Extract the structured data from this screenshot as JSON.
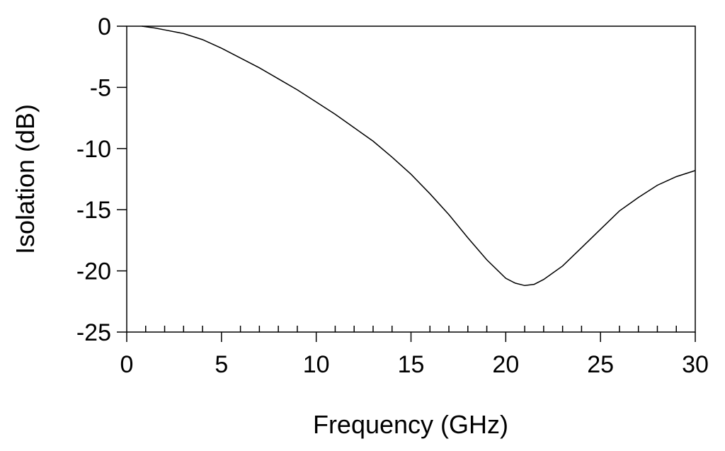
{
  "chart_data": {
    "type": "line",
    "title": "",
    "xlabel": "Frequency (GHz)",
    "ylabel": "Isolation (dB)",
    "xlim": [
      0,
      30
    ],
    "ylim": [
      -25,
      0
    ],
    "xticks": [
      0,
      5,
      10,
      15,
      20,
      25,
      30
    ],
    "xtick_labels": [
      "0",
      "5",
      "10",
      "15",
      "20",
      "25",
      "30"
    ],
    "yticks": [
      0,
      -5,
      -10,
      -15,
      -20,
      -25
    ],
    "ytick_labels": [
      "0",
      "-5",
      "-10",
      "-15",
      "-20",
      "-25"
    ],
    "x_minor_step": 1,
    "grid": false,
    "legend": "none",
    "line_color": "#000000",
    "series": [
      {
        "x": [
          0.8,
          1.5,
          2,
          3,
          4,
          5,
          6,
          7,
          8,
          9,
          10,
          11,
          12,
          13,
          14,
          15,
          16,
          17,
          18,
          19,
          20,
          20.5,
          21,
          21.5,
          22,
          23,
          24,
          25,
          26,
          27,
          28,
          29,
          30
        ],
        "y": [
          0,
          -0.15,
          -0.3,
          -0.6,
          -1.1,
          -1.8,
          -2.6,
          -3.4,
          -4.3,
          -5.2,
          -6.2,
          -7.2,
          -8.3,
          -9.4,
          -10.7,
          -12.1,
          -13.7,
          -15.4,
          -17.3,
          -19.1,
          -20.6,
          -21.0,
          -21.2,
          -21.1,
          -20.7,
          -19.6,
          -18.1,
          -16.6,
          -15.1,
          -14.0,
          -13.0,
          -12.3,
          -11.8
        ]
      }
    ]
  }
}
